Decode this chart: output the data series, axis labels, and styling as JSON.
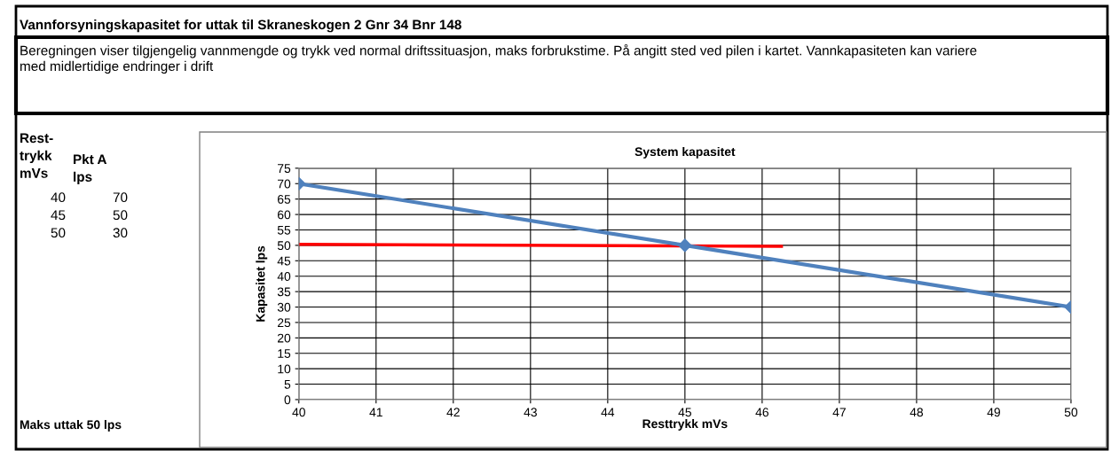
{
  "chart_data": {
    "type": "line",
    "title": "System kapasitet",
    "xlabel": "Resttrykk mVs",
    "ylabel": "Kapasitet lps",
    "annotations": [
      "Vannforsyningskapasitet for uttak til Skraneskogen 2 Gnr 34 Bnr 148",
      "Beregningen viser tilgjengelig vannmengde og trykk ved normal driftssituasjon, maks forbrukstime. På angitt sted ved pilen i kartet. Vannkapasiteten kan variere\nmed midlertidige endringer i drift",
      "Rest-\ntrykk\nmVs",
      "Pkt A\nlps",
      "Maks uttak 50 lps",
      "40",
      "70",
      "45",
      "50",
      "50",
      "30"
    ],
    "series": [
      {
        "color": "#4f81bd",
        "x": [
          40,
          45,
          50
        ],
        "values": [
          70,
          50,
          30
        ],
        "marker": "diamond"
      },
      {
        "color": "#ff0000",
        "x": [
          40,
          46.25
        ],
        "values": [
          50.3,
          49.7
        ],
        "marker": "none"
      }
    ],
    "xlim": [
      40,
      50
    ],
    "xticks": [
      40,
      41,
      42,
      43,
      44,
      45,
      46,
      47,
      48,
      49,
      50
    ],
    "ylim": [
      0,
      75
    ],
    "yticks": [
      0,
      5,
      10,
      15,
      20,
      25,
      30,
      35,
      40,
      45,
      50,
      55,
      60,
      65,
      70,
      75
    ],
    "grid": true,
    "legend": false
  }
}
